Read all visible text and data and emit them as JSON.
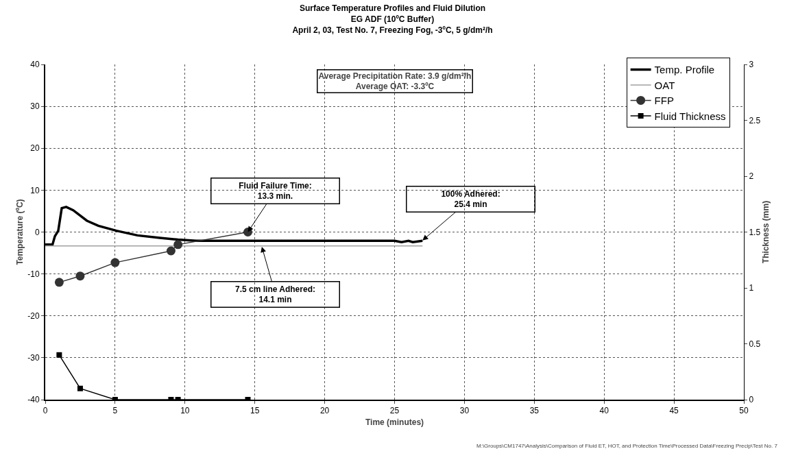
{
  "chart_data": {
    "type": "line",
    "title": "Surface Temperature Profiles and Fluid Dilution",
    "subtitle": "EG ADF (10ºC Buffer)\nApril 2, 03, Test No. 7, Freezing Fog, -3ºC, 5 g/dm²/h",
    "xlabel": "Time (minutes)",
    "ylabel": "Temperature (ºC)",
    "y2label": "Thickness (mm)",
    "series": [
      {
        "name": "Temp. Profile",
        "color": "#000000",
        "marker": "none",
        "x": [
          0,
          0.52,
          0.69,
          0.93,
          1.18,
          1.5,
          2.0,
          2.98,
          3.8,
          5.1,
          6.6,
          8.2,
          9.5,
          10.8,
          12,
          16,
          25,
          25.5,
          26,
          26.3,
          27
        ],
        "values": [
          -3,
          -3,
          -1,
          0.3,
          5.7,
          6,
          5.2,
          2.7,
          1.5,
          0.3,
          -0.8,
          -1.4,
          -1.8,
          -2.1,
          -2.1,
          -2.1,
          -2.1,
          -2.4,
          -2.1,
          -2.4,
          -2.1
        ]
      },
      {
        "name": "OAT",
        "color": "#a0a0a0",
        "marker": "none",
        "x": [
          0,
          10,
          20,
          27
        ],
        "values": [
          -3.3,
          -3.3,
          -3.3,
          -3.3
        ]
      },
      {
        "name": "FFP",
        "color": "#333333",
        "marker": "circle",
        "x": [
          1,
          2.5,
          5,
          9,
          9.5,
          14.5
        ],
        "values": [
          -12,
          -10.5,
          -7.3,
          -4.5,
          -3,
          0
        ]
      },
      {
        "name": "Fluid Thickness",
        "color": "#000000",
        "marker": "square",
        "axis": "y2",
        "x": [
          1,
          2.5,
          5,
          9,
          9.5,
          14.5
        ],
        "values": [
          0.4,
          0.1,
          0,
          0,
          0,
          0
        ]
      }
    ],
    "annotations": [
      "Average Precipitation Rate: 3.9 g/dm²/h\nAverage OAT: -3.3ºC",
      {
        "text": "Fluid Failure Time:\n13.3 min.",
        "x": 14.5,
        "y": 0
      },
      {
        "text": "100% Adhered:\n25.4 min",
        "x": 27,
        "y": -2
      },
      {
        "text": "7.5 cm line Adhered:\n14.1 min",
        "x": 15.5,
        "y": -3.5
      },
      "M:\\Groups\\CM1747\\Analysis\\Comparison of Fluid ET, HOT, and Protection Time\\Processed Data\\Freezing Precip\\Test No. 7"
    ],
    "xlim": [
      0,
      50
    ],
    "xticks": [
      0,
      5,
      10,
      15,
      20,
      25,
      30,
      35,
      40,
      45,
      50
    ],
    "ylim": [
      -40,
      40
    ],
    "yticks": [
      -40,
      -30,
      -20,
      -10,
      0,
      10,
      20,
      30,
      40
    ],
    "y2lim": [
      0,
      3
    ],
    "y2ticks": [
      0,
      0.5,
      1,
      1.5,
      2,
      2.5,
      3
    ],
    "grid": true,
    "legend": "top right",
    "line_style": "solid"
  }
}
